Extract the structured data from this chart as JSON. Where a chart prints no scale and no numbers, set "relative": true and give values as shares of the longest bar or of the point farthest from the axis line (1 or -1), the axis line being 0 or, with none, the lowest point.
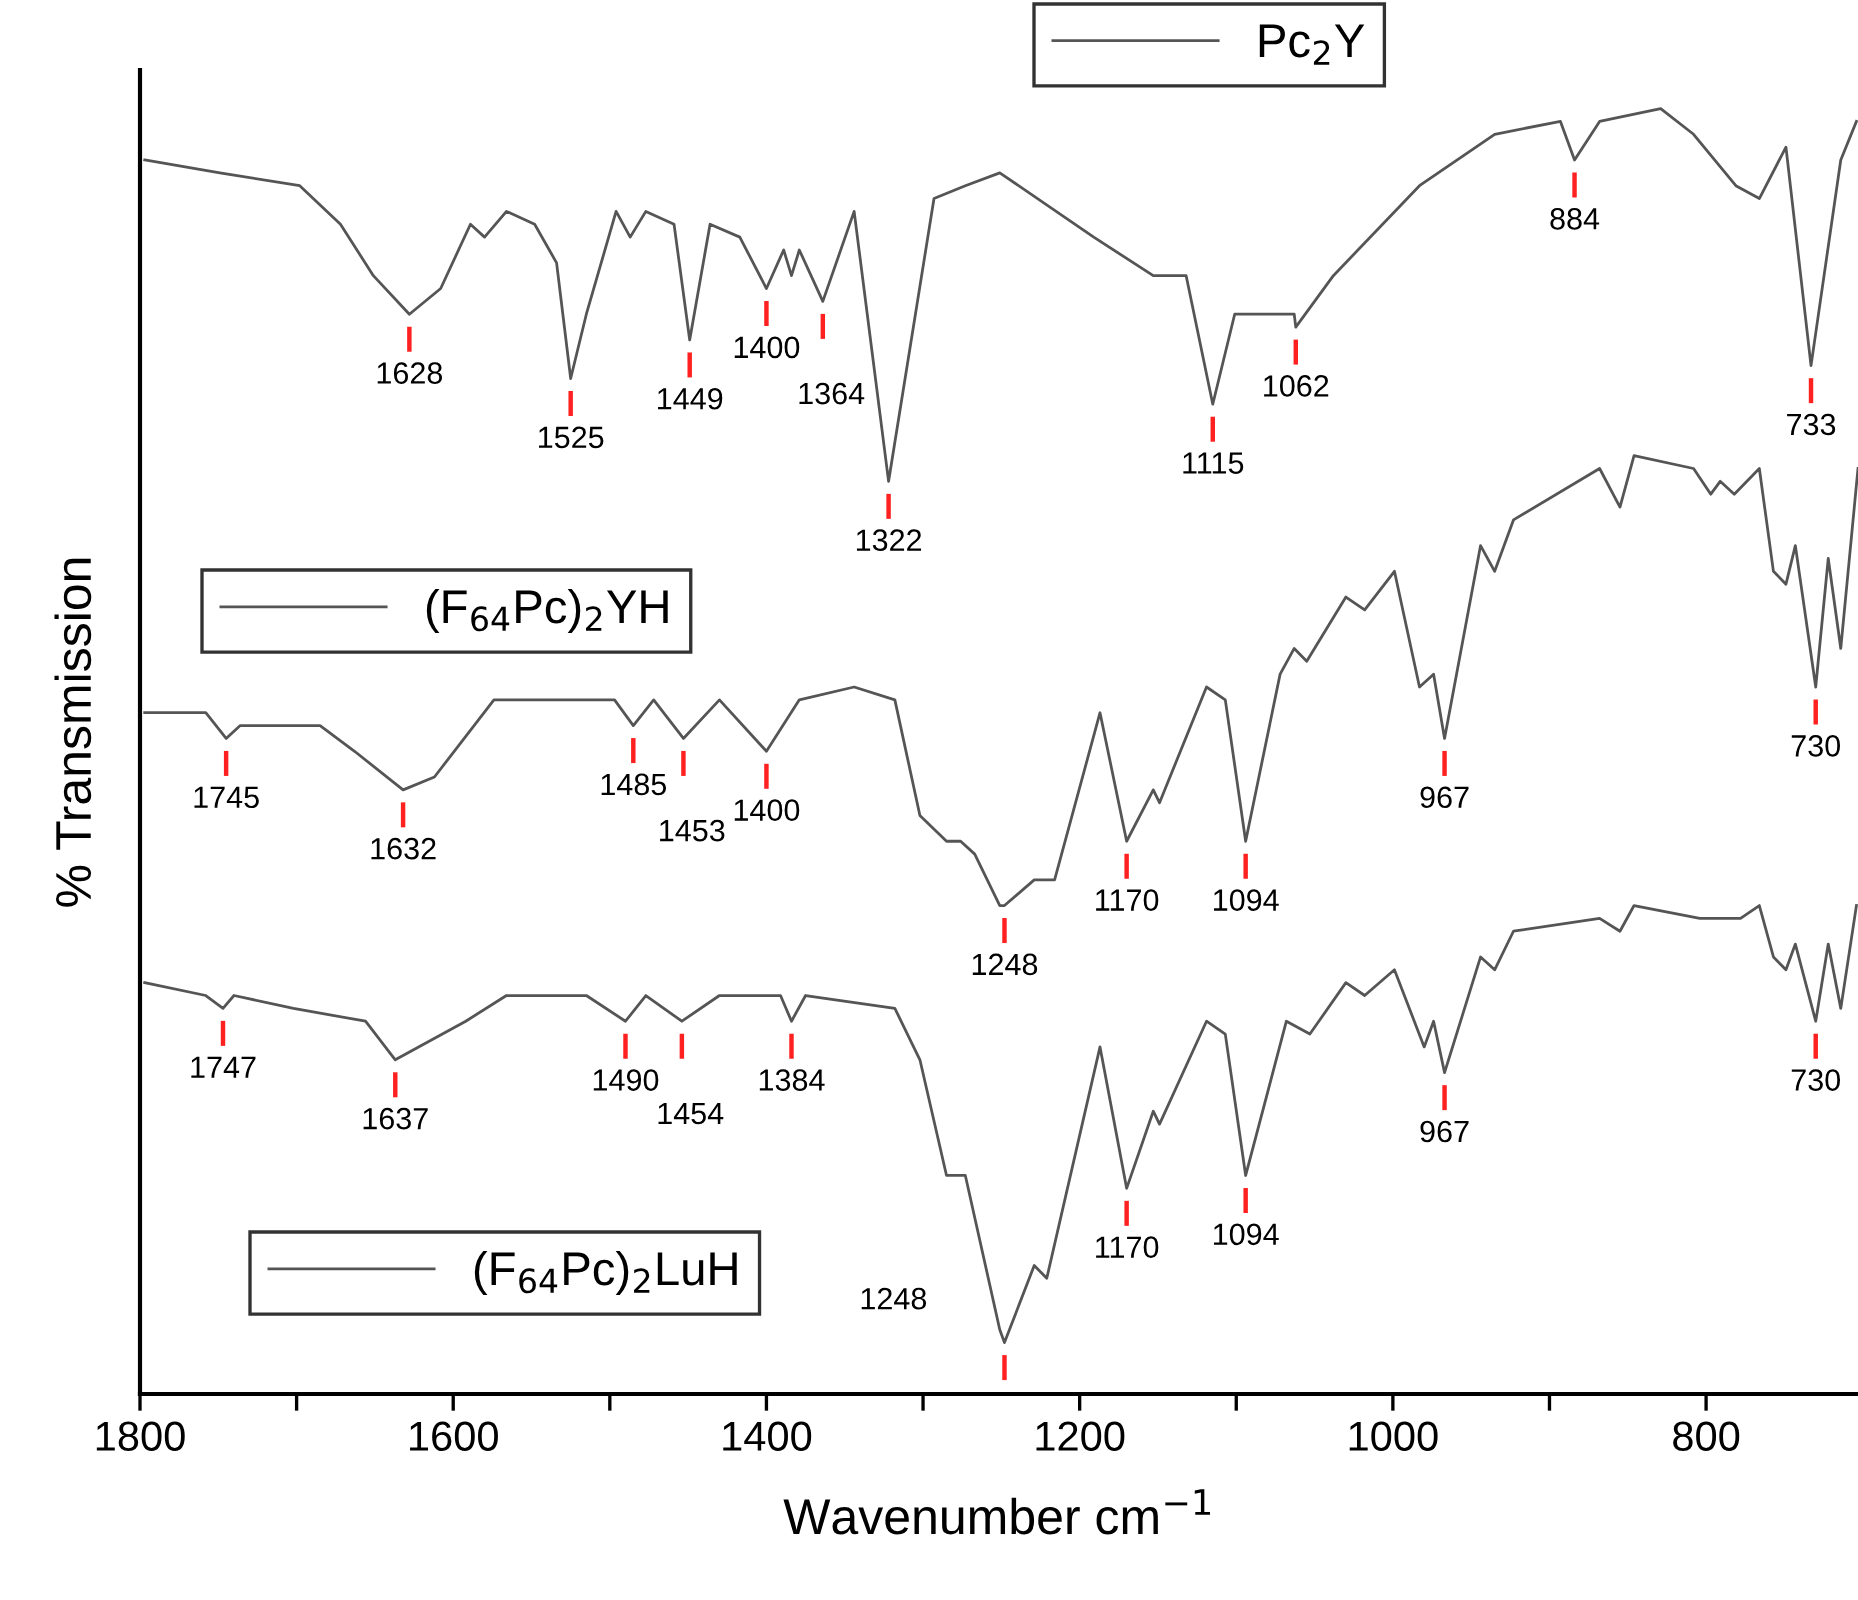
{
  "chart_data": {
    "type": "line",
    "relative": true,
    "xlabel": "Wavenumber cm$^{−1}$",
    "ylabel": "% Transmission",
    "xlim": [
      1800,
      703
    ],
    "xticks": [
      1800,
      {
        "value": 1700,
        "label": null
      },
      1600,
      {
        "value": 1500,
        "label": null
      },
      1400,
      {
        "value": 1300,
        "label": null
      },
      1200,
      {
        "value": 1100,
        "label": null
      },
      1000,
      {
        "value": 900,
        "label": null
      },
      800
    ],
    "legend": "top",
    "grid": false,
    "marker": "none",
    "line_style": "solid",
    "tick_labels": "x",
    "series": [
      {
        "name": "Pc$_{2}$Y",
        "color": "#555555",
        "x": [
          1797,
          1749,
          1698,
          1672,
          1651,
          1628,
          1608,
          1589,
          1580,
          1566,
          1548,
          1534,
          1525,
          1515,
          1496,
          1487,
          1477,
          1459,
          1449,
          1436,
          1417,
          1400,
          1389,
          1384,
          1379,
          1364,
          1344,
          1322,
          1293,
          1273,
          1251,
          1191,
          1153,
          1132,
          1115,
          1101,
          1063,
          1062,
          1038,
          983,
          935,
          893,
          884,
          868,
          829,
          808,
          781,
          766,
          749,
          733,
          714,
          704
        ],
        "values": [
          0.96,
          0.95,
          0.94,
          0.91,
          0.87,
          0.84,
          0.86,
          0.91,
          0.9,
          0.92,
          0.91,
          0.88,
          0.79,
          0.84,
          0.92,
          0.9,
          0.92,
          0.91,
          0.82,
          0.91,
          0.9,
          0.86,
          0.89,
          0.87,
          0.89,
          0.85,
          0.92,
          0.71,
          0.93,
          0.94,
          0.95,
          0.9,
          0.87,
          0.87,
          0.77,
          0.84,
          0.84,
          0.83,
          0.87,
          0.94,
          0.98,
          0.99,
          0.96,
          0.99,
          1.0,
          0.98,
          0.94,
          0.93,
          0.97,
          0.8,
          0.96,
          0.99
        ]
      },
      {
        "name": "(F$_{64}$Pc)$_{2}$YH",
        "color": "#555555",
        "x": [
          1797,
          1758,
          1745,
          1736,
          1685,
          1663,
          1632,
          1612,
          1574,
          1536,
          1497,
          1485,
          1472,
          1453,
          1430,
          1400,
          1379,
          1344,
          1318,
          1302,
          1285,
          1276,
          1267,
          1251,
          1248,
          1229,
          1216,
          1187,
          1170,
          1153,
          1149,
          1119,
          1107,
          1094,
          1072,
          1063,
          1055,
          1030,
          1018,
          999,
          983,
          974,
          967,
          944,
          935,
          923,
          868,
          855,
          846,
          808,
          797,
          791,
          782,
          766,
          757,
          749,
          743,
          730,
          722,
          714,
          703
        ],
        "values": [
          0.53,
          0.53,
          0.51,
          0.52,
          0.52,
          0.5,
          0.47,
          0.48,
          0.54,
          0.54,
          0.54,
          0.52,
          0.54,
          0.51,
          0.54,
          0.5,
          0.54,
          0.55,
          0.54,
          0.45,
          0.43,
          0.43,
          0.42,
          0.38,
          0.38,
          0.4,
          0.4,
          0.53,
          0.43,
          0.47,
          0.46,
          0.55,
          0.54,
          0.43,
          0.56,
          0.58,
          0.57,
          0.62,
          0.61,
          0.64,
          0.55,
          0.56,
          0.51,
          0.66,
          0.64,
          0.68,
          0.72,
          0.69,
          0.73,
          0.72,
          0.7,
          0.71,
          0.7,
          0.72,
          0.64,
          0.63,
          0.66,
          0.55,
          0.65,
          0.58,
          0.72
        ]
      },
      {
        "name": "(F$_{64}$Pc)$_{2}$LuH",
        "color": "#555555",
        "x": [
          1797,
          1758,
          1747,
          1740,
          1702,
          1656,
          1637,
          1592,
          1566,
          1515,
          1490,
          1477,
          1454,
          1430,
          1391,
          1384,
          1375,
          1318,
          1302,
          1285,
          1273,
          1251,
          1248,
          1229,
          1221,
          1187,
          1170,
          1153,
          1149,
          1119,
          1107,
          1094,
          1068,
          1053,
          1030,
          1018,
          999,
          980,
          974,
          967,
          944,
          935,
          923,
          868,
          855,
          846,
          804,
          797,
          778,
          766,
          757,
          749,
          743,
          730,
          722,
          714,
          704
        ],
        "values": [
          0.32,
          0.31,
          0.3,
          0.31,
          0.3,
          0.29,
          0.26,
          0.29,
          0.31,
          0.31,
          0.29,
          0.31,
          0.29,
          0.31,
          0.31,
          0.29,
          0.31,
          0.3,
          0.26,
          0.17,
          0.17,
          0.05,
          0.04,
          0.1,
          0.09,
          0.27,
          0.16,
          0.22,
          0.21,
          0.29,
          0.28,
          0.17,
          0.29,
          0.28,
          0.32,
          0.31,
          0.33,
          0.27,
          0.29,
          0.25,
          0.34,
          0.33,
          0.36,
          0.37,
          0.36,
          0.38,
          0.37,
          0.37,
          0.37,
          0.38,
          0.34,
          0.33,
          0.35,
          0.29,
          0.35,
          0.3,
          0.38
        ]
      }
    ],
    "annotations": [
      {
        "text": "1628",
        "x": 1628,
        "y": 0.84
      },
      {
        "text": "1525",
        "x": 1525,
        "y": 0.79
      },
      {
        "text": "1449",
        "x": 1449,
        "y": 0.82
      },
      {
        "text": "1400",
        "x": 1400,
        "y": 0.86
      },
      {
        "text": "1364",
        "x": 1364,
        "y": 0.85
      },
      {
        "text": "1322",
        "x": 1322,
        "y": 0.71
      },
      {
        "text": "1115",
        "x": 1115,
        "y": 0.77
      },
      {
        "text": "1062",
        "x": 1062,
        "y": 0.83
      },
      {
        "text": "884",
        "x": 884,
        "y": 0.96
      },
      {
        "text": "733",
        "x": 733,
        "y": 0.8
      },
      {
        "text": "1745",
        "x": 1745,
        "y": 0.51
      },
      {
        "text": "1632",
        "x": 1632,
        "y": 0.47
      },
      {
        "text": "1485",
        "x": 1485,
        "y": 0.52
      },
      {
        "text": "1453",
        "x": 1453,
        "y": 0.51
      },
      {
        "text": "1400",
        "x": 1400,
        "y": 0.5
      },
      {
        "text": "1248",
        "x": 1248,
        "y": 0.38
      },
      {
        "text": "1170",
        "x": 1170,
        "y": 0.43
      },
      {
        "text": "1094",
        "x": 1094,
        "y": 0.43
      },
      {
        "text": "967",
        "x": 967,
        "y": 0.51
      },
      {
        "text": "730",
        "x": 730,
        "y": 0.55
      },
      {
        "text": "1747",
        "x": 1747,
        "y": 0.3
      },
      {
        "text": "1637",
        "x": 1637,
        "y": 0.26
      },
      {
        "text": "1490",
        "x": 1490,
        "y": 0.29
      },
      {
        "text": "1454",
        "x": 1454,
        "y": 0.29
      },
      {
        "text": "1384",
        "x": 1384,
        "y": 0.29
      },
      {
        "text": "1248",
        "x": 1248,
        "y": 0.04
      },
      {
        "text": "1170",
        "x": 1170,
        "y": 0.16
      },
      {
        "text": "1094",
        "x": 1094,
        "y": 0.17
      },
      {
        "text": "967",
        "x": 967,
        "y": 0.25
      },
      {
        "text": "730",
        "x": 730,
        "y": 0.29
      }
    ]
  }
}
